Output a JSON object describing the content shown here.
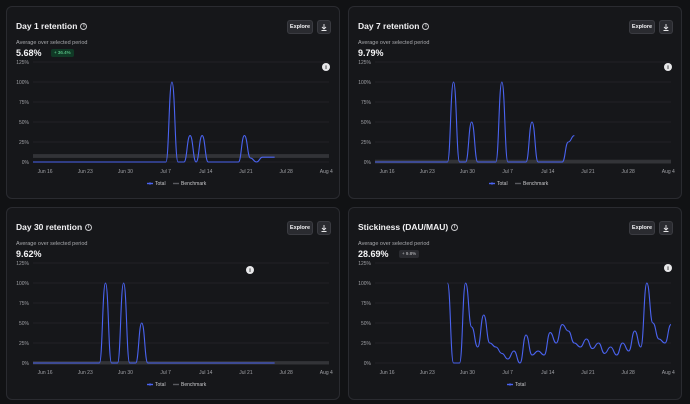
{
  "common": {
    "explore_label": "Explore",
    "subtitle": "Average over selected period",
    "legend_total": "Total",
    "legend_benchmark": "Benchmark",
    "x_ticks": [
      "Jun 16",
      "Jun 23",
      "Jun 30",
      "Jul 7",
      "Jul 14",
      "Jul 21",
      "Jul 28",
      "Aug 4"
    ],
    "y_ticks": [
      "0%",
      "25%",
      "50%",
      "75%",
      "100%",
      "125%"
    ],
    "colors": {
      "total_line": "#4a63f0",
      "benchmark_band": "#3a3b3f",
      "grid": "#2e2f34",
      "positive_badge": "#6ee7a0"
    }
  },
  "cards": [
    {
      "title": "Day 1 retention",
      "value": "5.68%",
      "badge": "+ 36.4%",
      "chart_data": {
        "type": "line",
        "x_ticks": [
          "Jun 16",
          "Jun 23",
          "Jun 30",
          "Jul 7",
          "Jul 14",
          "Jul 21",
          "Jul 28",
          "Aug 4"
        ],
        "y_ticks": [
          "0%",
          "25%",
          "50%",
          "75%",
          "100%",
          "125%"
        ],
        "ylim": [
          0,
          125
        ],
        "legend": "bottom-center",
        "series": [
          {
            "name": "Total",
            "points": [
              [
                0,
                0
              ],
              [
                22,
                0
              ],
              [
                23,
                100
              ],
              [
                24,
                0
              ],
              [
                25,
                0
              ],
              [
                26,
                33
              ],
              [
                27,
                0
              ],
              [
                28,
                33
              ],
              [
                29,
                0
              ],
              [
                34,
                0
              ],
              [
                35,
                33
              ],
              [
                36,
                5
              ],
              [
                37,
                0
              ],
              [
                38,
                6
              ],
              [
                40,
                6
              ]
            ]
          },
          {
            "name": "Benchmark",
            "band": [
              7,
              8
            ]
          }
        ]
      }
    },
    {
      "title": "Day 7 retention",
      "value": "9.79%",
      "chart_data": {
        "type": "line",
        "x_ticks": [
          "Jun 16",
          "Jun 23",
          "Jun 30",
          "Jul 7",
          "Jul 14",
          "Jul 21",
          "Jul 28",
          "Aug 4"
        ],
        "y_ticks": [
          "0%",
          "25%",
          "50%",
          "75%",
          "100%",
          "125%"
        ],
        "ylim": [
          0,
          125
        ],
        "legend": "bottom-center",
        "series": [
          {
            "name": "Total",
            "points": [
              [
                0,
                0
              ],
              [
                12,
                0
              ],
              [
                13,
                100
              ],
              [
                14,
                0
              ],
              [
                15,
                0
              ],
              [
                16,
                50
              ],
              [
                17,
                0
              ],
              [
                20,
                0
              ],
              [
                21,
                100
              ],
              [
                22,
                0
              ],
              [
                25,
                0
              ],
              [
                26,
                50
              ],
              [
                27,
                0
              ],
              [
                31,
                0
              ],
              [
                32,
                25
              ],
              [
                33,
                33
              ]
            ]
          },
          {
            "name": "Benchmark",
            "band": [
              0,
              1
            ]
          }
        ]
      }
    },
    {
      "title": "Day 30 retention",
      "value": "9.62%",
      "chart_data": {
        "type": "line",
        "x_ticks": [
          "Jun 16",
          "Jun 23",
          "Jun 30",
          "Jul 7",
          "Jul 14",
          "Jul 21",
          "Jul 28",
          "Aug 4"
        ],
        "y_ticks": [
          "0%",
          "25%",
          "50%",
          "75%",
          "100%",
          "125%"
        ],
        "ylim": [
          0,
          125
        ],
        "legend": "bottom-center",
        "series": [
          {
            "name": "Total",
            "points": [
              [
                0,
                0
              ],
              [
                11,
                0
              ],
              [
                12,
                100
              ],
              [
                13,
                0
              ],
              [
                14,
                0
              ],
              [
                15,
                100
              ],
              [
                16,
                0
              ],
              [
                17,
                0
              ],
              [
                18,
                50
              ],
              [
                19,
                0
              ],
              [
                40,
                0
              ]
            ]
          },
          {
            "name": "Benchmark",
            "band": [
              0,
              0.5
            ]
          }
        ]
      }
    },
    {
      "title": "Stickiness (DAU/MAU)",
      "value": "28.69%",
      "badge": "+ 9.8%",
      "chart_data": {
        "type": "line",
        "x_ticks": [
          "Jun 16",
          "Jun 23",
          "Jun 30",
          "Jul 7",
          "Jul 14",
          "Jul 21",
          "Jul 28",
          "Aug 4"
        ],
        "y_ticks": [
          "0%",
          "25%",
          "50%",
          "75%",
          "100%",
          "125%"
        ],
        "ylim": [
          0,
          125
        ],
        "legend": "bottom-center",
        "series": [
          {
            "name": "Total",
            "points": [
              [
                12,
                100
              ],
              [
                13,
                0
              ],
              [
                14,
                0
              ],
              [
                15,
                100
              ],
              [
                16,
                45
              ],
              [
                17,
                20
              ],
              [
                18,
                60
              ],
              [
                19,
                25
              ],
              [
                20,
                20
              ],
              [
                21,
                12
              ],
              [
                22,
                5
              ],
              [
                23,
                15
              ],
              [
                24,
                0
              ],
              [
                25,
                35
              ],
              [
                26,
                10
              ],
              [
                27,
                15
              ],
              [
                28,
                10
              ],
              [
                29,
                38
              ],
              [
                30,
                25
              ],
              [
                31,
                48
              ],
              [
                32,
                40
              ],
              [
                33,
                25
              ],
              [
                34,
                20
              ],
              [
                35,
                30
              ],
              [
                36,
                18
              ],
              [
                37,
                25
              ],
              [
                38,
                12
              ],
              [
                39,
                20
              ],
              [
                40,
                10
              ],
              [
                41,
                25
              ],
              [
                42,
                15
              ],
              [
                43,
                40
              ],
              [
                44,
                20
              ],
              [
                45,
                100
              ],
              [
                46,
                50
              ],
              [
                47,
                30
              ],
              [
                48,
                25
              ],
              [
                49,
                48
              ]
            ]
          }
        ]
      }
    }
  ]
}
